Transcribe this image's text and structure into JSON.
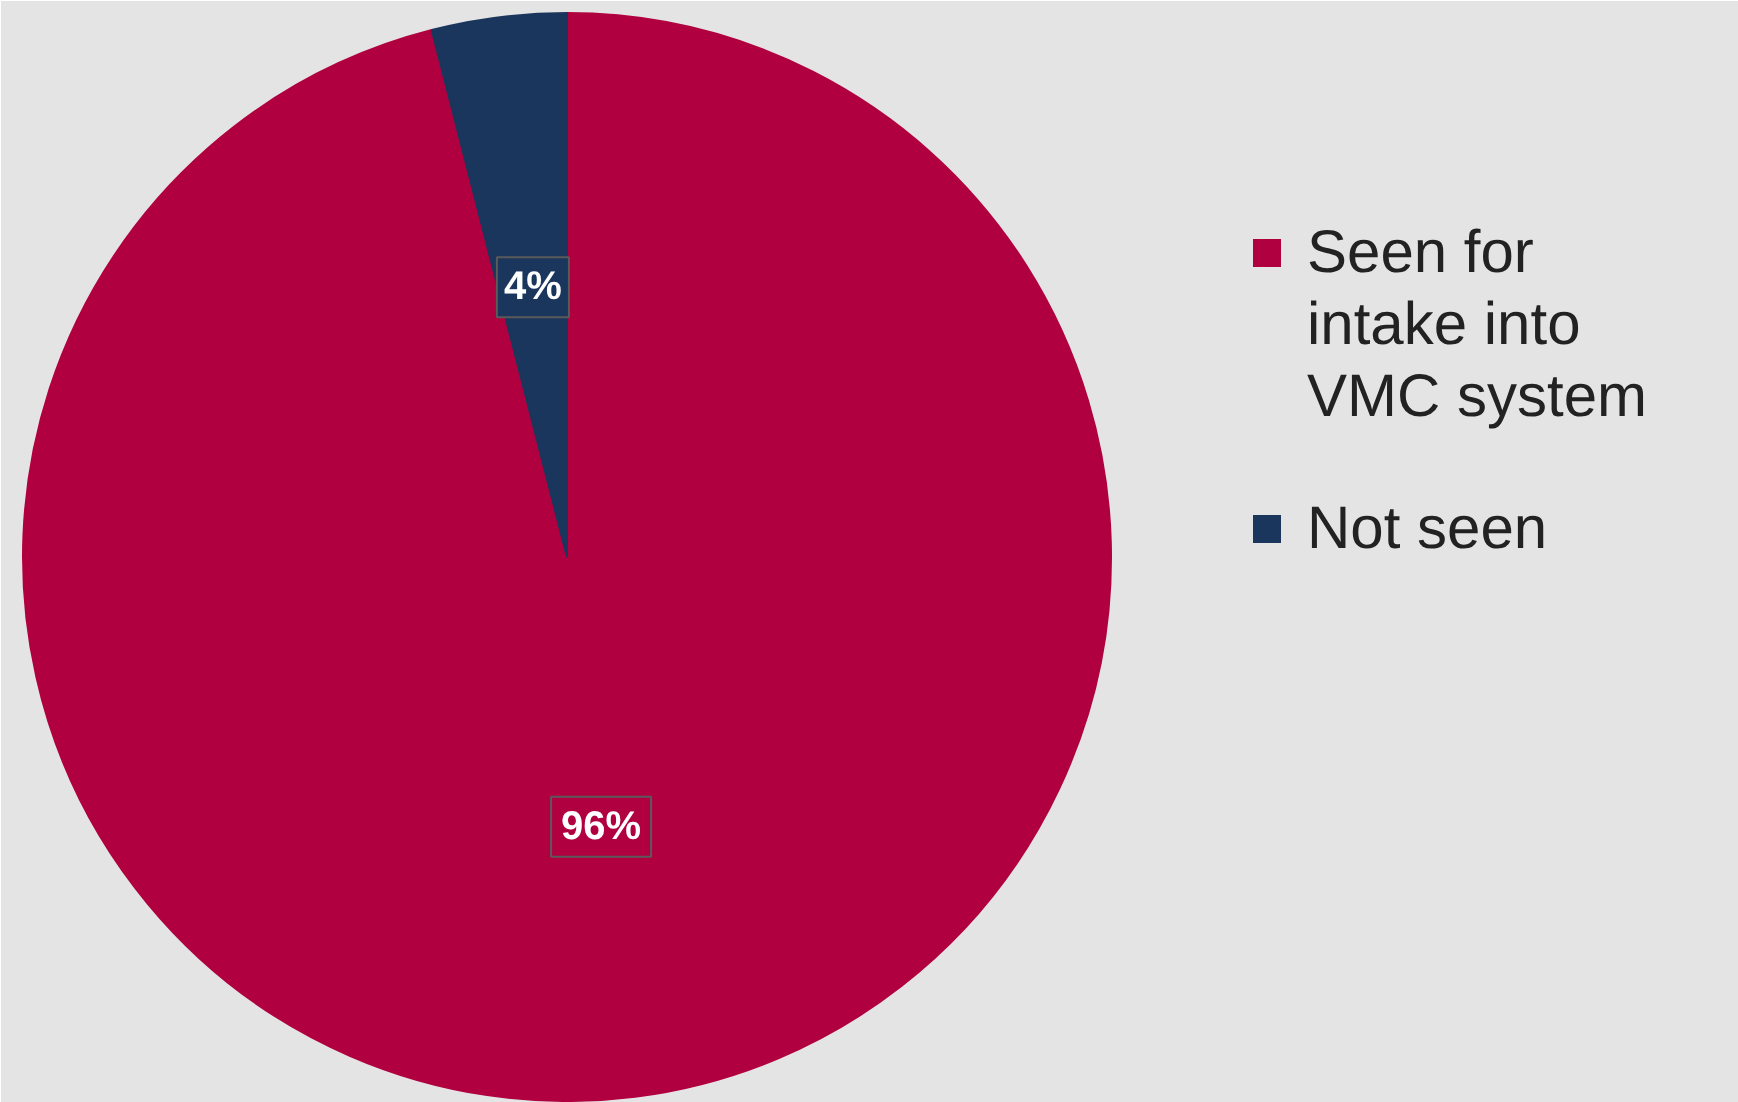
{
  "chart_data": {
    "type": "pie",
    "categories": [
      "Seen for intake into VMC system",
      "Not seen"
    ],
    "values": [
      96,
      4
    ],
    "colors": [
      "#b0003f",
      "#1b365d"
    ],
    "value_labels": [
      "96%",
      "4%"
    ],
    "legend": "right"
  }
}
